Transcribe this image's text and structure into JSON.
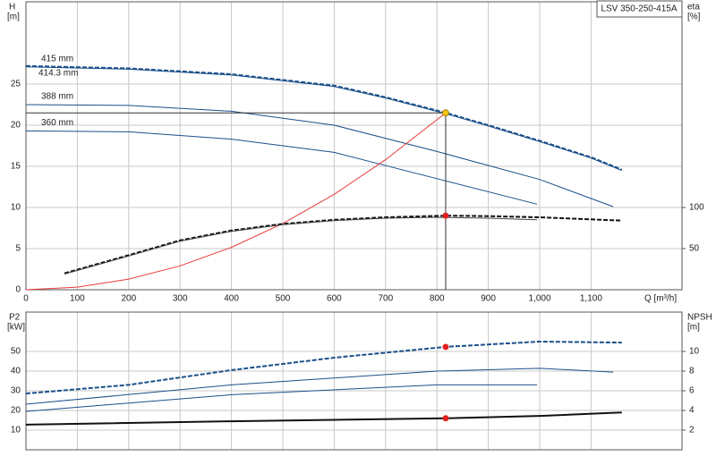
{
  "chart_data": [
    {
      "type": "line",
      "model": "LSV 350-250-415A",
      "y_label": "H",
      "y_unit": "[m]",
      "y2_label": "eta",
      "y2_unit": "[%]",
      "x_label": "Q [m³/h]",
      "xlim": [
        0,
        1277
      ],
      "xticks": [
        0,
        100,
        200,
        300,
        400,
        500,
        600,
        700,
        800,
        900,
        {
          "value": 1000,
          "label": "1,000"
        },
        {
          "value": 1100,
          "label": "1,100"
        }
      ],
      "xtick_labels": true,
      "ylim": [
        0,
        35
      ],
      "yticks": [
        0,
        5,
        10,
        15,
        20,
        25
      ],
      "y2lim": [
        0,
        350
      ],
      "y2ticks": [
        50,
        100
      ],
      "grid": true,
      "series": [
        {
          "name": "415 mm",
          "color": "#1a4f8a",
          "width": 2,
          "dash": true,
          "x": [
            0,
            200,
            400,
            600,
            700,
            817,
            900,
            1000,
            1100,
            1160
          ],
          "values": [
            27.2,
            26.9,
            26.2,
            24.8,
            23.4,
            21.5,
            20.0,
            18.1,
            16.1,
            14.6
          ]
        },
        {
          "name": "414.3 mm",
          "color": "#1a4f8a",
          "width": 1,
          "x": [
            0,
            200,
            400,
            600,
            700,
            817,
            900,
            1000,
            1100,
            1160
          ],
          "values": [
            27.1,
            26.8,
            26.1,
            24.7,
            23.3,
            21.4,
            19.9,
            18.0,
            16.0,
            14.5
          ]
        },
        {
          "name": "388 mm",
          "color": "#1a4f8a",
          "width": 1,
          "x": [
            0,
            200,
            400,
            600,
            800,
            1000,
            1143
          ],
          "values": [
            22.5,
            22.4,
            21.7,
            20.0,
            16.8,
            13.4,
            10.1
          ]
        },
        {
          "name": "360 mm",
          "color": "#1a4f8a",
          "width": 1,
          "x": [
            0,
            200,
            400,
            600,
            800,
            995
          ],
          "values": [
            19.3,
            19.2,
            18.3,
            16.7,
            13.5,
            10.4
          ]
        },
        {
          "color": "#e83a3a",
          "width": 1,
          "x": [
            0,
            100,
            200,
            300,
            400,
            500,
            600,
            700,
            817
          ],
          "values": [
            0,
            0.32,
            1.29,
            2.9,
            5.15,
            8.05,
            11.6,
            15.8,
            21.5
          ]
        },
        {
          "color": "#111111",
          "width": 2,
          "dash": true,
          "axis": "y2",
          "x": [
            75,
            200,
            300,
            400,
            500,
            600,
            700,
            817,
            900,
            1000,
            1160
          ],
          "values": [
            20,
            42,
            60,
            72,
            80,
            85,
            88,
            90,
            89.5,
            88,
            84
          ]
        },
        {
          "color": "#444444",
          "width": 1,
          "axis": "y2",
          "x": [
            75,
            200,
            300,
            400,
            500,
            600,
            700,
            800,
            900,
            995
          ],
          "values": [
            19,
            41,
            59,
            71,
            79,
            84,
            87,
            88,
            87,
            85
          ]
        },
        {
          "style": "point",
          "color": "#f5c518",
          "crosshair": true,
          "x": [
            817
          ],
          "values": [
            21.5
          ]
        },
        {
          "style": "point",
          "color": "#e02020",
          "axis": "y2",
          "x": [
            817
          ],
          "values": [
            90
          ]
        }
      ]
    },
    {
      "type": "line",
      "y_label": "P2",
      "y_unit": "[kW]",
      "y2_label": "NPSH",
      "y2_unit": "[m]",
      "xlim": [
        0,
        1277
      ],
      "xticks": [
        100,
        200,
        300,
        400,
        500,
        600,
        700,
        800,
        900,
        1000,
        1100
      ],
      "xtick_labels": false,
      "ylim": [
        0,
        70
      ],
      "yticks": [
        10,
        20,
        30,
        40,
        50
      ],
      "y2lim": [
        0,
        14
      ],
      "y2ticks": [
        2,
        4,
        6,
        8,
        10
      ],
      "grid": true,
      "series": [
        {
          "color": "#1a4f8a",
          "width": 2,
          "dash": true,
          "x": [
            0,
            200,
            400,
            600,
            817,
            1000,
            1160
          ],
          "values": [
            28.6,
            33,
            40.5,
            46.8,
            52.3,
            55,
            54.5
          ]
        },
        {
          "color": "#1a4f8a",
          "width": 1,
          "x": [
            0,
            400,
            800,
            1000,
            1143
          ],
          "values": [
            23.2,
            33,
            40,
            41.4,
            39.5
          ]
        },
        {
          "color": "#1a4f8a",
          "width": 1,
          "x": [
            0,
            400,
            800,
            995
          ],
          "values": [
            19.5,
            28,
            33,
            33
          ]
        },
        {
          "color": "#111111",
          "width": 2,
          "axis": "y2",
          "x": [
            0,
            400,
            817,
            1000,
            1160
          ],
          "values": [
            2.55,
            2.9,
            3.2,
            3.45,
            3.8
          ]
        },
        {
          "style": "point",
          "color": "#e02020",
          "x": [
            817
          ],
          "values": [
            52.3
          ]
        },
        {
          "style": "point",
          "color": "#e02020",
          "axis": "y2",
          "x": [
            817
          ],
          "values": [
            3.2
          ]
        }
      ]
    }
  ]
}
